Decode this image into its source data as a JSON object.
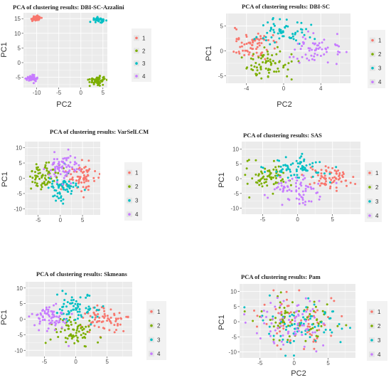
{
  "figure": {
    "colors": [
      "#F8766D",
      "#7CAE00",
      "#00BFC4",
      "#C77CFF"
    ],
    "legend_labels": [
      "1",
      "2",
      "3",
      "4"
    ]
  },
  "chart_data": [
    {
      "type": "scatter",
      "title": "PCA of clustering results: DBI-SC-Azzalini",
      "xlabel": "PC2",
      "ylabel": "PC1",
      "xlim": [
        -13,
        6
      ],
      "ylim": [
        -8.5,
        17
      ],
      "xticks": [
        -10,
        -5,
        0,
        5
      ],
      "yticks": [
        -5,
        0,
        5,
        10,
        15
      ],
      "legend_position": "right",
      "grid": true,
      "clusters": [
        {
          "label": "1",
          "center": [
            -10.2,
            15.0
          ],
          "spread": [
            0.7,
            0.45
          ],
          "n": 45
        },
        {
          "label": "2",
          "center": [
            3.8,
            -6.0
          ],
          "spread": [
            0.9,
            0.7
          ],
          "n": 70
        },
        {
          "label": "3",
          "center": [
            4.2,
            14.6
          ],
          "spread": [
            0.8,
            0.35
          ],
          "n": 40
        },
        {
          "label": "4",
          "center": [
            -11.2,
            -5.4
          ],
          "spread": [
            0.6,
            0.5
          ],
          "n": 45
        }
      ]
    },
    {
      "type": "scatter",
      "title": "PCA of clustering results: DBI-SC",
      "xlabel": "PC2",
      "ylabel": "PC1",
      "xlim": [
        -6.2,
        7.2
      ],
      "ylim": [
        -6.5,
        7.5
      ],
      "xticks": [
        -4,
        0,
        4
      ],
      "yticks": [
        -5,
        0,
        5
      ],
      "legend_position": "right",
      "grid": true,
      "clusters": [
        {
          "label": "1",
          "center": [
            -3.4,
            1.2
          ],
          "spread": [
            1.4,
            1.6
          ],
          "n": 70
        },
        {
          "label": "2",
          "center": [
            -1.5,
            -3.0
          ],
          "spread": [
            1.3,
            1.4
          ],
          "n": 70
        },
        {
          "label": "3",
          "center": [
            0.3,
            3.8
          ],
          "spread": [
            1.4,
            1.5
          ],
          "n": 60
        },
        {
          "label": "4",
          "center": [
            3.6,
            0.5
          ],
          "spread": [
            1.3,
            1.5
          ],
          "n": 60
        }
      ]
    },
    {
      "type": "scatter",
      "title": "PCA of clustering results: VarSelLCM",
      "xlabel": "",
      "ylabel": "PC1",
      "xlim": [
        -8,
        9
      ],
      "ylim": [
        -12,
        12
      ],
      "xticks": [
        -5,
        0,
        5
      ],
      "yticks": [
        -10,
        -5,
        0,
        5,
        10
      ],
      "legend_position": "right",
      "grid": true,
      "clusters": [
        {
          "label": "1",
          "center": [
            4.5,
            0.0
          ],
          "spread": [
            1.7,
            2.2
          ],
          "n": 70
        },
        {
          "label": "2",
          "center": [
            -3.8,
            0.5
          ],
          "spread": [
            1.6,
            2.3
          ],
          "n": 70
        },
        {
          "label": "3",
          "center": [
            0.5,
            -3.0
          ],
          "spread": [
            1.7,
            2.6
          ],
          "n": 70
        },
        {
          "label": "4",
          "center": [
            0.5,
            3.5
          ],
          "spread": [
            1.8,
            2.4
          ],
          "n": 70
        }
      ]
    },
    {
      "type": "scatter",
      "title": "PCA of clustering results: SAS",
      "xlabel": "",
      "ylabel": "PC1",
      "xlim": [
        -8,
        9
      ],
      "ylim": [
        -12,
        12.5
      ],
      "xticks": [
        -5,
        0,
        5
      ],
      "yticks": [
        -10,
        -5,
        0,
        5,
        10
      ],
      "legend_position": "right",
      "grid": true,
      "clusters": [
        {
          "label": "1",
          "center": [
            4.5,
            0.0
          ],
          "spread": [
            1.7,
            2.0
          ],
          "n": 70
        },
        {
          "label": "2",
          "center": [
            -4.0,
            0.5
          ],
          "spread": [
            1.6,
            2.2
          ],
          "n": 70
        },
        {
          "label": "3",
          "center": [
            0.0,
            4.0
          ],
          "spread": [
            1.9,
            2.2
          ],
          "n": 70
        },
        {
          "label": "4",
          "center": [
            0.0,
            -3.5
          ],
          "spread": [
            1.9,
            2.4
          ],
          "n": 70
        }
      ]
    },
    {
      "type": "scatter",
      "title": "PCA of clustering results: Skmeans",
      "xlabel": "",
      "ylabel": "PC1",
      "xlim": [
        -8,
        9
      ],
      "ylim": [
        -12,
        12
      ],
      "xticks": [
        -5,
        0,
        5
      ],
      "yticks": [
        -10,
        -5,
        0,
        5,
        10
      ],
      "legend_position": "right",
      "grid": true,
      "clusters": [
        {
          "label": "1",
          "center": [
            4.5,
            0.0
          ],
          "spread": [
            1.7,
            2.2
          ],
          "n": 70
        },
        {
          "label": "2",
          "center": [
            0.0,
            -4.0
          ],
          "spread": [
            1.8,
            2.4
          ],
          "n": 70
        },
        {
          "label": "3",
          "center": [
            0.3,
            3.5
          ],
          "spread": [
            1.8,
            2.2
          ],
          "n": 70
        },
        {
          "label": "4",
          "center": [
            -4.2,
            0.3
          ],
          "spread": [
            1.6,
            2.0
          ],
          "n": 70
        }
      ]
    },
    {
      "type": "scatter",
      "title": "PCA of clustering results: Pam",
      "xlabel": "PC2",
      "ylabel": "PC1",
      "xlim": [
        -8,
        9
      ],
      "ylim": [
        -12,
        12.5
      ],
      "xticks": [
        -5,
        0,
        5
      ],
      "yticks": [
        -10,
        -5,
        0,
        5,
        10
      ],
      "legend_position": "right",
      "grid": true,
      "clusters": [
        {
          "label": "1",
          "center": [
            0.0,
            0.0
          ],
          "spread": [
            3.2,
            4.0
          ],
          "n": 70
        },
        {
          "label": "2",
          "center": [
            0.5,
            0.5
          ],
          "spread": [
            3.2,
            4.0
          ],
          "n": 70
        },
        {
          "label": "3",
          "center": [
            0.5,
            0.0
          ],
          "spread": [
            3.2,
            4.0
          ],
          "n": 70
        },
        {
          "label": "4",
          "center": [
            -0.5,
            -0.5
          ],
          "spread": [
            3.2,
            4.0
          ],
          "n": 70
        }
      ]
    }
  ]
}
